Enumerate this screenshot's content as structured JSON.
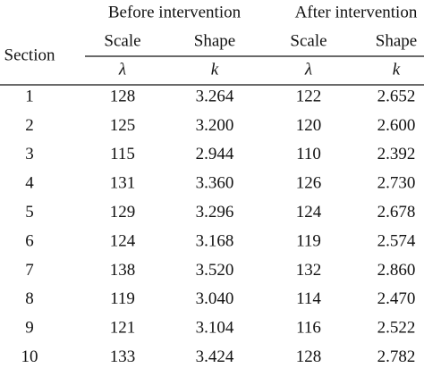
{
  "table": {
    "groups": [
      "Before intervention",
      "After intervention"
    ],
    "section": "Section",
    "subheaders": [
      "Scale",
      "Shape",
      "Scale",
      "Shape"
    ],
    "symbols": [
      "λ",
      "k",
      "λ",
      "k"
    ],
    "rows": [
      [
        "1",
        "128",
        "3.264",
        "122",
        "2.652"
      ],
      [
        "2",
        "125",
        "3.200",
        "120",
        "2.600"
      ],
      [
        "3",
        "115",
        "2.944",
        "110",
        "2.392"
      ],
      [
        "4",
        "131",
        "3.360",
        "126",
        "2.730"
      ],
      [
        "5",
        "129",
        "3.296",
        "124",
        "2.678"
      ],
      [
        "6",
        "124",
        "3.168",
        "119",
        "2.574"
      ],
      [
        "7",
        "138",
        "3.520",
        "132",
        "2.860"
      ],
      [
        "8",
        "119",
        "3.040",
        "114",
        "2.470"
      ],
      [
        "9",
        "121",
        "3.104",
        "116",
        "2.522"
      ],
      [
        "10",
        "133",
        "3.424",
        "128",
        "2.782"
      ]
    ]
  }
}
